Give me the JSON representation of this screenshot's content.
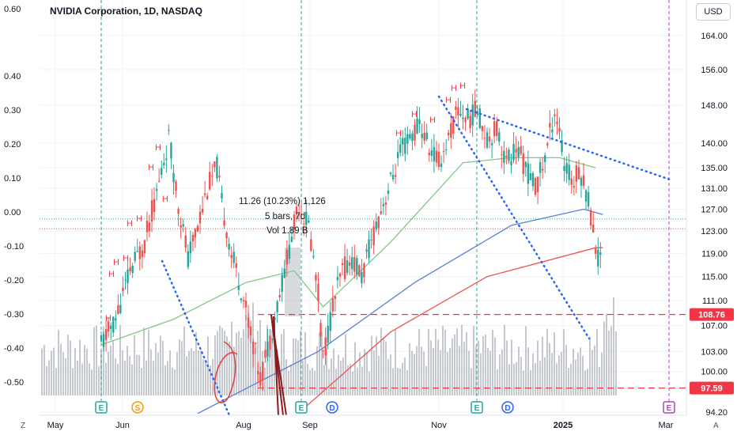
{
  "header": {
    "title": "NVIDIA Corporation, 1D, NASDAQ",
    "currency": "USD"
  },
  "corner": {
    "left": "Z",
    "right": "A"
  },
  "measure": {
    "line1": "11.26 (10.23%) 1,126",
    "line2": "5 bars, 7d",
    "line3": "Vol 1.89 B"
  },
  "price_tags": [
    {
      "label": "108.76",
      "color": "#f23645"
    },
    {
      "label": "97.59",
      "color": "#f23645"
    }
  ],
  "chart_data": {
    "type": "candlestick",
    "symbol": "NVIDIA Corporation",
    "interval": "1D",
    "exchange": "NASDAQ",
    "right_axis": {
      "scale": "log",
      "ticks": [
        94.2,
        97.59,
        100,
        103,
        107,
        108.76,
        111,
        115,
        119,
        123,
        127,
        131,
        135,
        140,
        148,
        156,
        164
      ]
    },
    "left_axis": {
      "ticks": [
        "0.60",
        "0.40",
        "0.30",
        "0.20",
        "0.10",
        "0.00",
        "-0.10",
        "-0.20",
        "-0.30",
        "-0.40",
        "-0.50"
      ]
    },
    "x_labels": [
      "May",
      "Jun",
      "Aug",
      "Sep",
      "Nov",
      "2025",
      "Mar"
    ],
    "horizontal_levels": [
      108.76,
      97.59
    ],
    "price_series": [
      [
        0,
        104
      ],
      [
        6,
        108
      ],
      [
        12,
        116
      ],
      [
        18,
        121
      ],
      [
        24,
        132
      ],
      [
        28,
        141
      ],
      [
        32,
        128
      ],
      [
        36,
        118
      ],
      [
        40,
        124
      ],
      [
        44,
        131
      ],
      [
        48,
        135
      ],
      [
        50,
        128
      ],
      [
        54,
        119
      ],
      [
        58,
        113
      ],
      [
        62,
        106
      ],
      [
        66,
        99
      ],
      [
        70,
        105
      ],
      [
        74,
        112
      ],
      [
        78,
        120
      ],
      [
        82,
        128
      ],
      [
        86,
        124
      ],
      [
        88,
        118
      ],
      [
        90,
        112
      ],
      [
        92,
        102
      ],
      [
        96,
        110
      ],
      [
        100,
        116
      ],
      [
        104,
        118
      ],
      [
        108,
        115
      ],
      [
        112,
        121
      ],
      [
        116,
        127
      ],
      [
        120,
        132
      ],
      [
        124,
        138
      ],
      [
        128,
        141
      ],
      [
        132,
        144
      ],
      [
        136,
        139
      ],
      [
        140,
        136
      ],
      [
        144,
        141
      ],
      [
        148,
        147
      ],
      [
        152,
        145
      ],
      [
        156,
        147
      ],
      [
        160,
        141
      ],
      [
        164,
        143
      ],
      [
        168,
        136
      ],
      [
        172,
        139
      ],
      [
        176,
        135
      ],
      [
        180,
        131
      ],
      [
        184,
        137
      ],
      [
        188,
        147
      ],
      [
        190,
        143
      ],
      [
        192,
        135
      ],
      [
        196,
        132
      ],
      [
        198,
        135
      ],
      [
        202,
        129
      ],
      [
        204,
        123
      ],
      [
        206,
        118
      ],
      [
        208,
        121
      ]
    ],
    "sma50": [
      [
        0,
        104
      ],
      [
        30,
        108
      ],
      [
        60,
        114
      ],
      [
        80,
        116
      ],
      [
        92,
        110
      ],
      [
        100,
        113
      ],
      [
        120,
        121
      ],
      [
        150,
        136
      ],
      [
        170,
        137
      ],
      [
        190,
        137
      ],
      [
        205,
        135
      ]
    ],
    "sma100": [
      [
        40,
        94
      ],
      [
        90,
        103
      ],
      [
        130,
        114
      ],
      [
        170,
        124
      ],
      [
        200,
        127
      ],
      [
        208,
        126
      ]
    ],
    "sma200": [
      [
        85,
        95
      ],
      [
        120,
        106
      ],
      [
        160,
        115
      ],
      [
        205,
        120
      ],
      [
        208,
        120
      ]
    ],
    "markers": [
      "E",
      "S",
      "E",
      "D",
      "E",
      "D",
      "E"
    ],
    "pattern_labels": "H"
  }
}
